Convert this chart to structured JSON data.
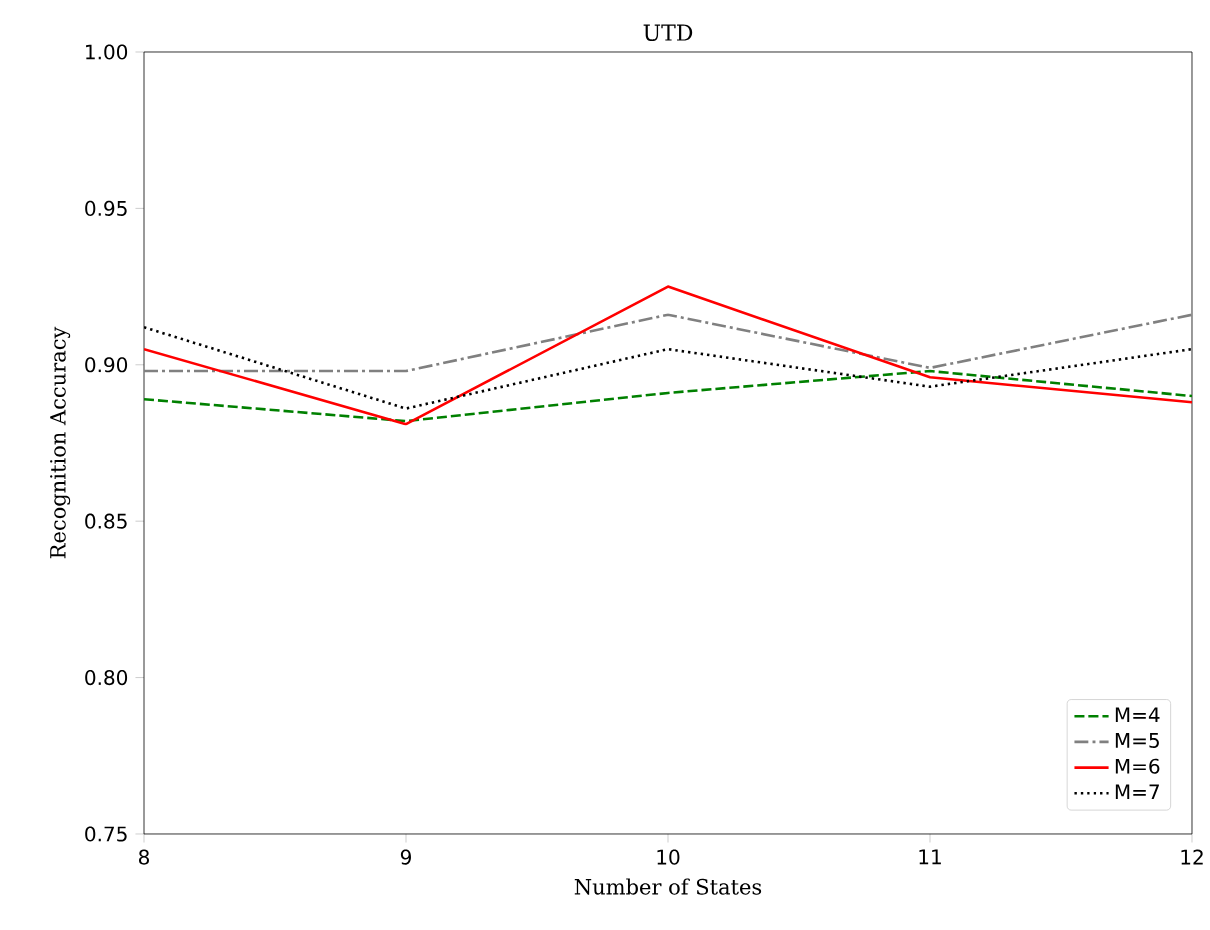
{
  "chart_data": {
    "type": "line",
    "title": "UTD",
    "xlabel": "Number of States",
    "ylabel": "Recognition Accuracy",
    "x": [
      8,
      9,
      10,
      11,
      12
    ],
    "xlim": [
      8,
      12
    ],
    "xticks": [
      8,
      9,
      10,
      11,
      12
    ],
    "ylim": [
      0.75,
      1.0
    ],
    "yticks": [
      {
        "value": 0.75,
        "label": "0.75"
      },
      {
        "value": 0.8,
        "label": "0.80"
      },
      {
        "value": 0.85,
        "label": "0.85"
      },
      {
        "value": 0.9,
        "label": "0.90"
      },
      {
        "value": 0.95,
        "label": "0.95"
      },
      {
        "value": 1.0,
        "label": "1.00"
      }
    ],
    "legend": "bottom right",
    "grid": false,
    "marker": "none",
    "series": [
      {
        "name": "M=4",
        "color": "#008000",
        "line_style": "dashed",
        "values": [
          0.889,
          0.882,
          0.891,
          0.898,
          0.89
        ]
      },
      {
        "name": "M=5",
        "color": "#808080",
        "line_style": "dashdot",
        "values": [
          0.898,
          0.898,
          0.916,
          0.899,
          0.916
        ]
      },
      {
        "name": "M=6",
        "color": "#ff0000",
        "line_style": "solid",
        "values": [
          0.905,
          0.881,
          0.925,
          0.896,
          0.888
        ]
      },
      {
        "name": "M=7",
        "color": "#000000",
        "line_style": "dotted",
        "values": [
          0.912,
          0.886,
          0.905,
          0.893,
          0.905
        ]
      }
    ]
  }
}
